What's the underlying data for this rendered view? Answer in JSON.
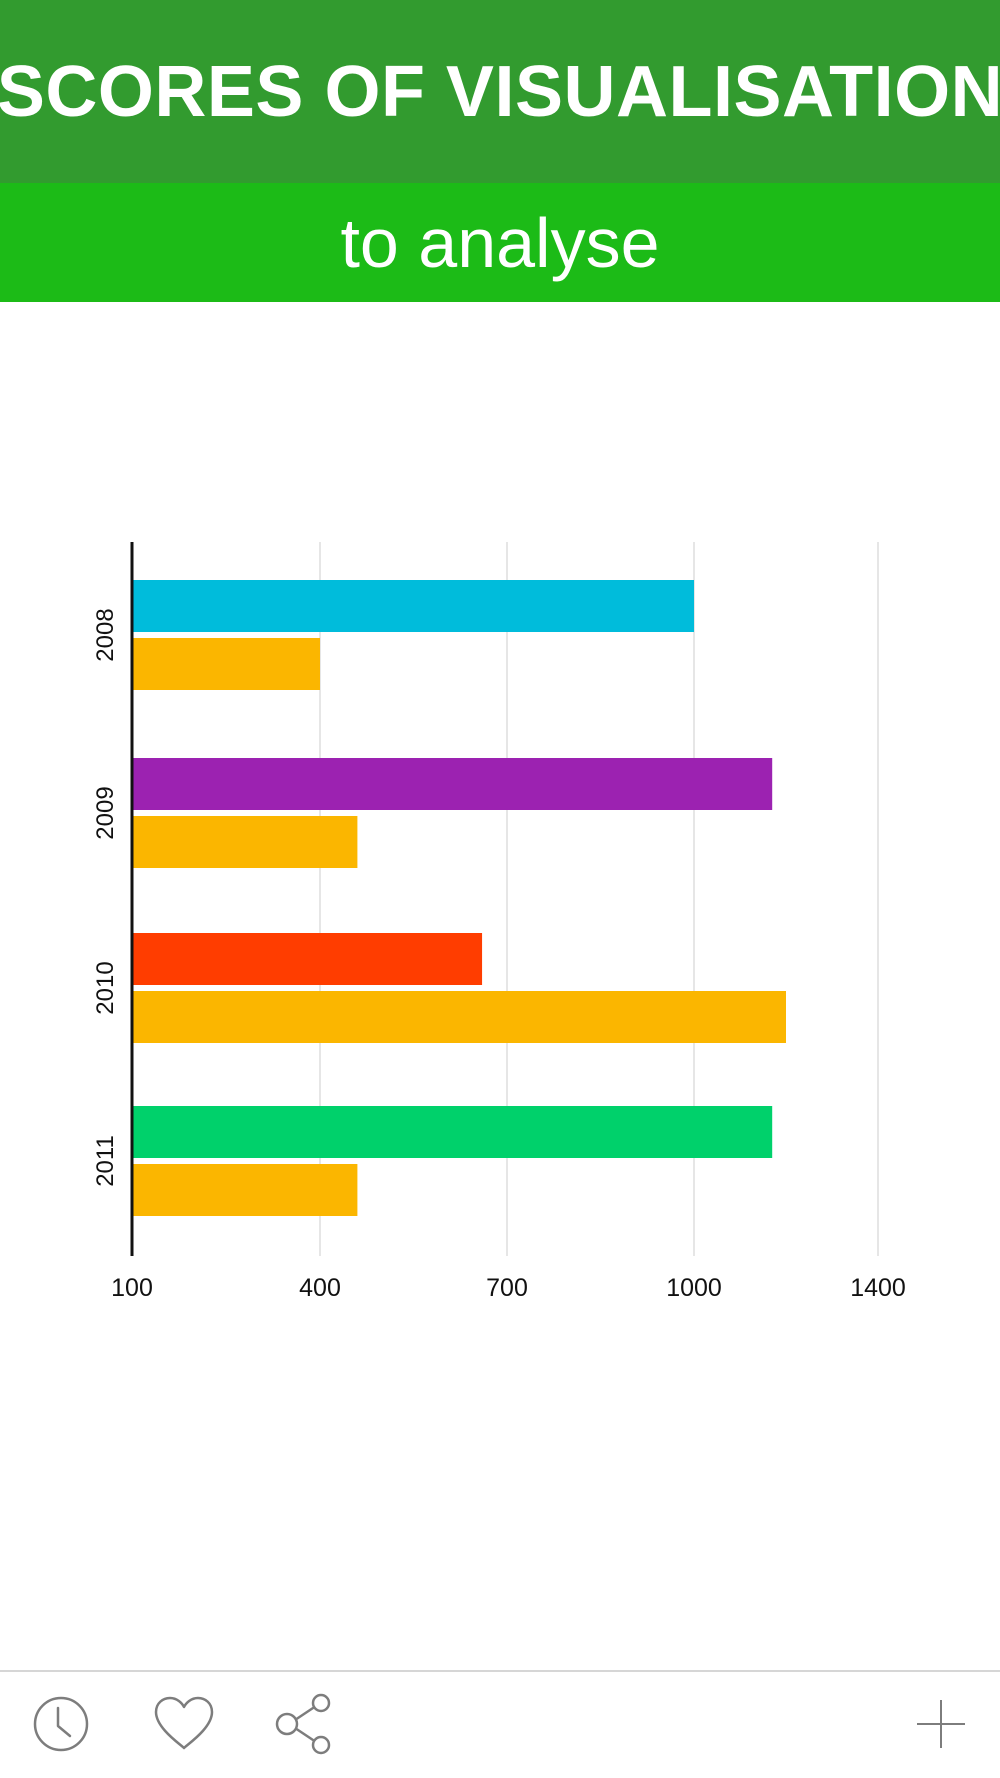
{
  "header": {
    "title": "SCORES OF VISUALISATION",
    "subtitle": "to analyse"
  },
  "colors": {
    "title_bar": "#329b2f",
    "subtitle_bar": "#1cbb17",
    "secondary_bar": "#fbb600"
  },
  "chart_data": {
    "type": "bar",
    "orientation": "horizontal",
    "title": "",
    "xlabel": "",
    "ylabel": "",
    "categories": [
      "2008",
      "2009",
      "2010",
      "2011"
    ],
    "primary_values": [
      1000,
      1170,
      660,
      1170
    ],
    "primary_colors": [
      "#00bcdb",
      "#9c22b1",
      "#ff3d00",
      "#00d16b"
    ],
    "secondary_values": [
      400,
      460,
      1200,
      460
    ],
    "secondary_color": "#fbb600",
    "xticks": [
      100,
      400,
      700,
      1000,
      1400
    ],
    "xlim": [
      100,
      1400
    ],
    "grid": true
  },
  "toolbar": {
    "items": [
      {
        "icon": "clock-icon"
      },
      {
        "icon": "heart-icon"
      },
      {
        "icon": "share-icon"
      },
      {
        "icon": "plus-icon"
      }
    ]
  }
}
